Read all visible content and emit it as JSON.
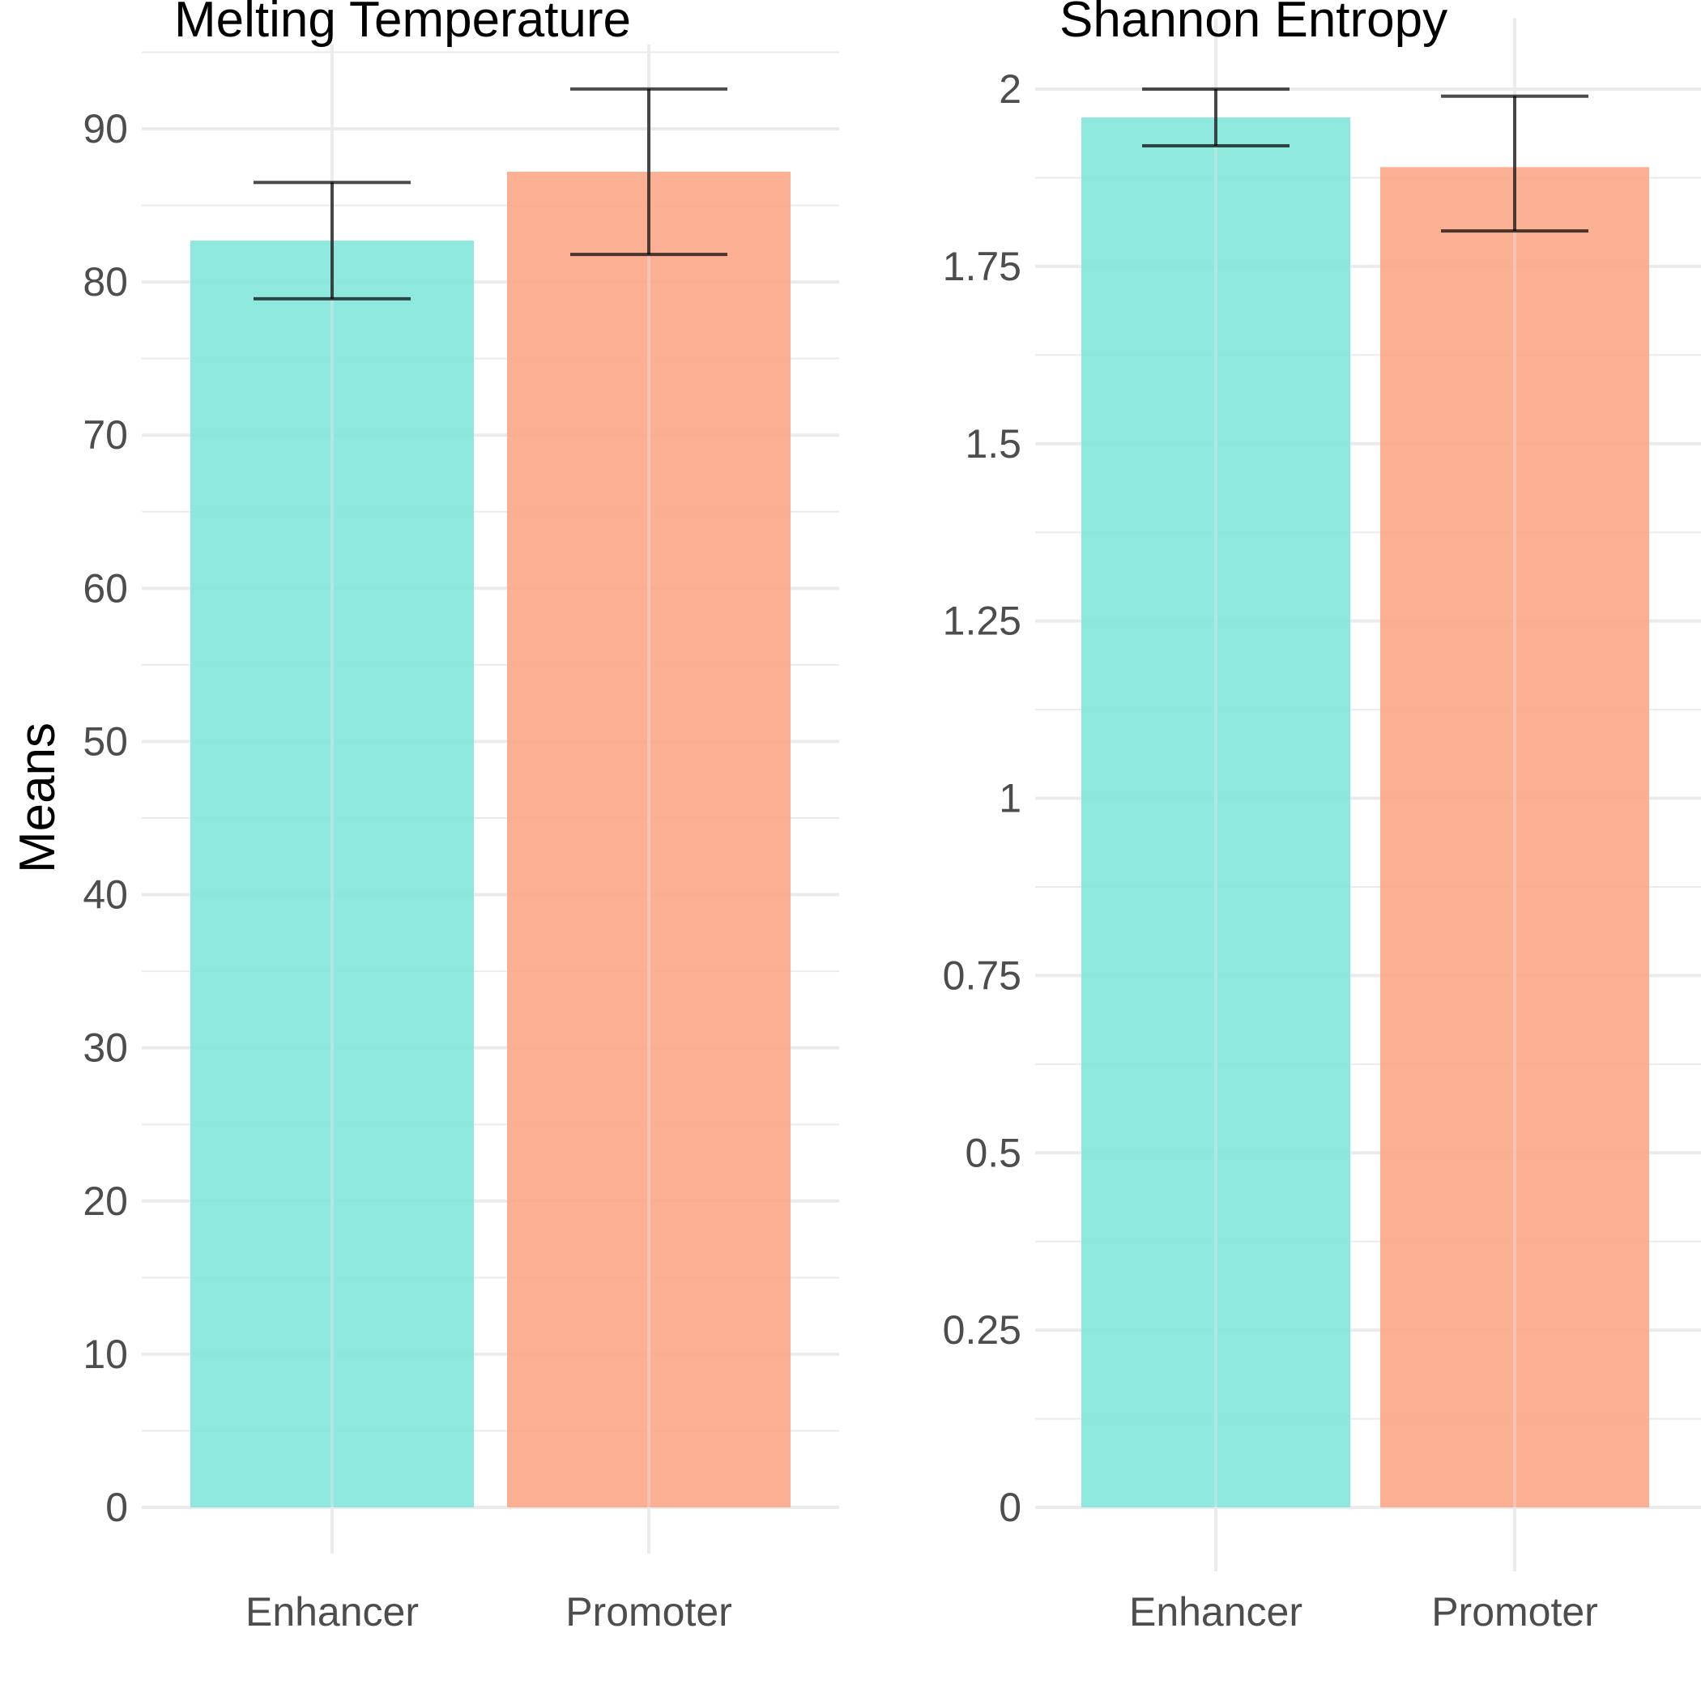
{
  "y_axis_label": "Means",
  "chart_data": [
    {
      "type": "bar",
      "title": "Melting Temperature",
      "categories": [
        "Enhancer",
        "Promoter"
      ],
      "values": [
        82.7,
        87.2
      ],
      "error_low": [
        78.9,
        81.8
      ],
      "error_high": [
        86.5,
        92.6
      ],
      "colors": [
        "#7fe5da",
        "#fba585"
      ],
      "ylim": [
        -3,
        95.5
      ],
      "yticks": [
        0,
        10,
        20,
        30,
        40,
        50,
        60,
        70,
        80,
        90
      ],
      "ytick_labels": [
        "0",
        "10",
        "20",
        "30",
        "40",
        "50",
        "60",
        "70",
        "80",
        "90"
      ],
      "grid": true
    },
    {
      "type": "bar",
      "title": "Shannon Entropy",
      "categories": [
        "Enhancer",
        "Promoter"
      ],
      "values": [
        1.96,
        1.89
      ],
      "error_low": [
        1.92,
        1.8
      ],
      "error_high": [
        2.0,
        1.99
      ],
      "colors": [
        "#7fe5da",
        "#fba585"
      ],
      "ylim": [
        -0.1,
        2.1
      ],
      "yticks": [
        0,
        0.25,
        0.5,
        0.75,
        1,
        1.25,
        1.5,
        1.75,
        2
      ],
      "ytick_labels": [
        "0",
        "0.25",
        "0.5",
        "0.75",
        "1",
        "1.25",
        "1.5",
        "1.75",
        "2"
      ],
      "grid": true
    }
  ]
}
